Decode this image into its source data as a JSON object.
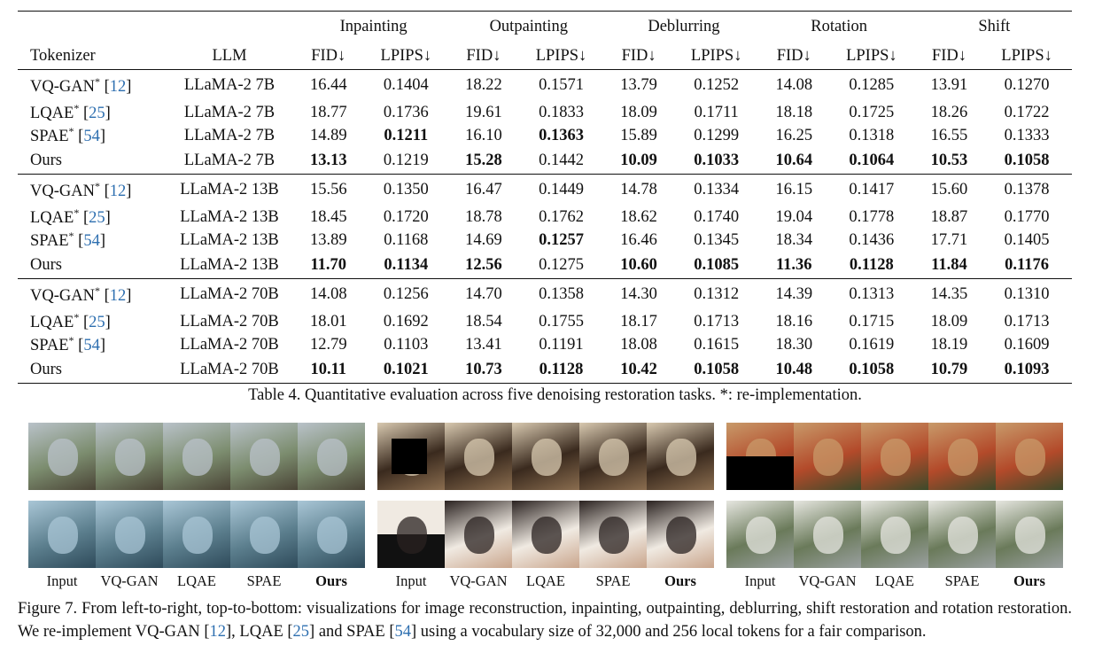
{
  "table": {
    "header": {
      "tokenizer": "Tokenizer",
      "llm": "LLM",
      "tasks": [
        "Inpainting",
        "Outpainting",
        "Deblurring",
        "Rotation",
        "Shift"
      ],
      "fid": "FID↓",
      "lpips": "LPIPS↓"
    },
    "groups": [
      {
        "rows": [
          {
            "tok_name": "VQ-GAN",
            "tok_mark": "*",
            "ref": "12",
            "llm": "LLaMA-2 7B",
            "values": [
              "16.44",
              "0.1404",
              "18.22",
              "0.1571",
              "13.79",
              "0.1252",
              "14.08",
              "0.1285",
              "13.91",
              "0.1270"
            ]
          },
          {
            "tok_name": "LQAE",
            "tok_mark": "*",
            "ref": "25",
            "llm": "LLaMA-2 7B",
            "values": [
              "18.77",
              "0.1736",
              "19.61",
              "0.1833",
              "18.09",
              "0.1711",
              "18.18",
              "0.1725",
              "18.26",
              "0.1722"
            ]
          },
          {
            "tok_name": "SPAE",
            "tok_mark": "*",
            "ref": "54",
            "llm": "LLaMA-2 7B",
            "values": [
              "14.89",
              "0.1211",
              "16.10",
              "0.1363",
              "15.89",
              "0.1299",
              "16.25",
              "0.1318",
              "16.55",
              "0.1333"
            ]
          },
          {
            "tok_name": "Ours",
            "tok_mark": "",
            "ref": "",
            "llm": "LLaMA-2 7B",
            "values": [
              "13.13",
              "0.1219",
              "15.28",
              "0.1442",
              "10.09",
              "0.1033",
              "10.64",
              "0.1064",
              "10.53",
              "0.1058"
            ]
          }
        ]
      },
      {
        "rows": [
          {
            "tok_name": "VQ-GAN",
            "tok_mark": "*",
            "ref": "12",
            "llm": "LLaMA-2 13B",
            "values": [
              "15.56",
              "0.1350",
              "16.47",
              "0.1449",
              "14.78",
              "0.1334",
              "16.15",
              "0.1417",
              "15.60",
              "0.1378"
            ]
          },
          {
            "tok_name": "LQAE",
            "tok_mark": "*",
            "ref": "25",
            "llm": "LLaMA-2 13B",
            "values": [
              "18.45",
              "0.1720",
              "18.78",
              "0.1762",
              "18.62",
              "0.1740",
              "19.04",
              "0.1778",
              "18.87",
              "0.1770"
            ]
          },
          {
            "tok_name": "SPAE",
            "tok_mark": "*",
            "ref": "54",
            "llm": "LLaMA-2 13B",
            "values": [
              "13.89",
              "0.1168",
              "14.69",
              "0.1257",
              "16.46",
              "0.1345",
              "18.34",
              "0.1436",
              "17.71",
              "0.1405"
            ]
          },
          {
            "tok_name": "Ours",
            "tok_mark": "",
            "ref": "",
            "llm": "LLaMA-2 13B",
            "values": [
              "11.70",
              "0.1134",
              "12.56",
              "0.1275",
              "10.60",
              "0.1085",
              "11.36",
              "0.1128",
              "11.84",
              "0.1176"
            ]
          }
        ]
      },
      {
        "rows": [
          {
            "tok_name": "VQ-GAN",
            "tok_mark": "*",
            "ref": "12",
            "llm": "LLaMA-2 70B",
            "values": [
              "14.08",
              "0.1256",
              "14.70",
              "0.1358",
              "14.30",
              "0.1312",
              "14.39",
              "0.1313",
              "14.35",
              "0.1310"
            ]
          },
          {
            "tok_name": "LQAE",
            "tok_mark": "*",
            "ref": "25",
            "llm": "LLaMA-2 70B",
            "values": [
              "18.01",
              "0.1692",
              "18.54",
              "0.1755",
              "18.17",
              "0.1713",
              "18.16",
              "0.1715",
              "18.09",
              "0.1713"
            ]
          },
          {
            "tok_name": "SPAE",
            "tok_mark": "*",
            "ref": "54",
            "llm": "LLaMA-2 70B",
            "values": [
              "12.79",
              "0.1103",
              "13.41",
              "0.1191",
              "18.08",
              "0.1615",
              "18.30",
              "0.1619",
              "18.19",
              "0.1609"
            ]
          },
          {
            "tok_name": "Ours",
            "tok_mark": "",
            "ref": "",
            "llm": "LLaMA-2 70B",
            "values": [
              "10.11",
              "0.1021",
              "10.73",
              "0.1128",
              "10.42",
              "0.1058",
              "10.48",
              "0.1058",
              "10.79",
              "0.1093"
            ]
          }
        ]
      }
    ],
    "bold": [
      [
        [],
        [],
        [
          1,
          3
        ],
        [
          0,
          2,
          4,
          5,
          6,
          7,
          8,
          9
        ]
      ],
      [
        [],
        [],
        [
          3
        ],
        [
          0,
          1,
          2,
          4,
          5,
          6,
          7,
          8,
          9
        ]
      ],
      [
        [],
        [],
        [],
        [
          0,
          1,
          2,
          3,
          4,
          5,
          6,
          7,
          8,
          9
        ]
      ]
    ],
    "caption": "Table 4. Quantitative evaluation across five denoising restoration tasks. *: re-implementation."
  },
  "figure": {
    "column_labels": [
      "Input",
      "VQ-GAN",
      "LQAE",
      "SPAE",
      "Ours"
    ],
    "panels": [
      {
        "top": "goats-and-farmer-photo",
        "bottom": "baby-in-blanket-photo"
      },
      {
        "top": "dog-on-bed-photo",
        "bottom": "smiling-woman-photo"
      },
      {
        "top": "animal-on-table-photo",
        "bottom": "white-poodle-photo"
      }
    ],
    "caption_parts": {
      "a": "Figure 7. From left-to-right, top-to-bottom: visualizations for image reconstruction, inpainting, outpainting, deblurring, shift restoration and rotation restoration. We re-implement VQ-GAN [",
      "ref1": "12",
      "b": "], LQAE [",
      "ref2": "25",
      "c": "] and SPAE [",
      "ref3": "54",
      "d": "] using a vocabulary size of 32,000 and 256 local tokens for a fair comparison."
    }
  },
  "colors": {
    "link": "#2e6fb0",
    "rule": "#111111"
  }
}
